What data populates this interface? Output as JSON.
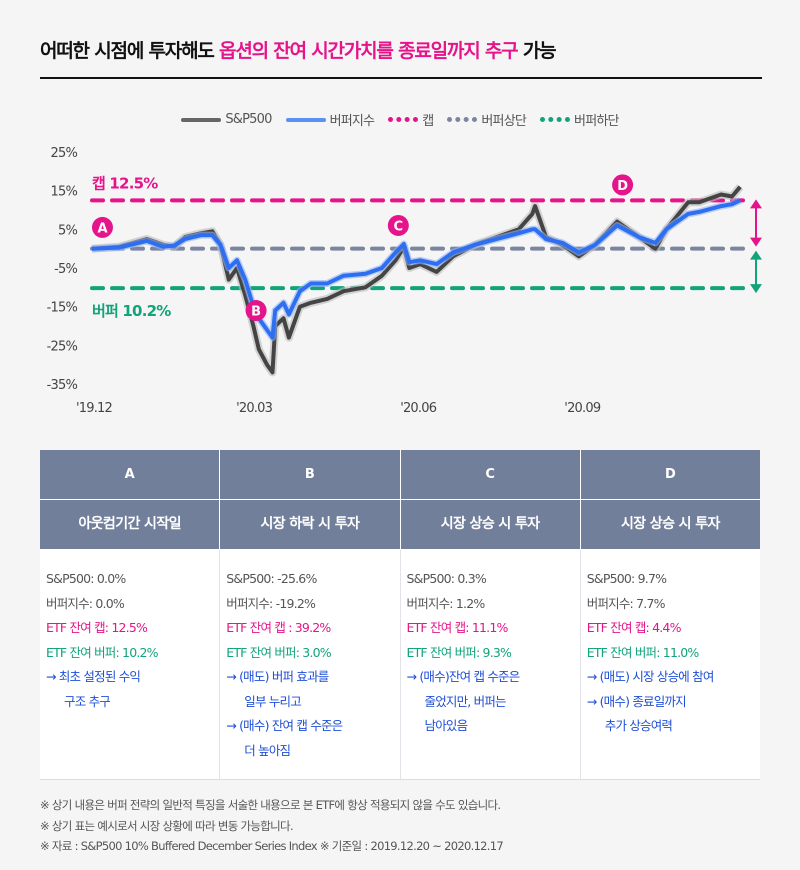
{
  "header": {
    "title_part1": "어떠한 시점에 투자해도 ",
    "title_highlight": "옵션의 잔여 시간가치를 종료일까지 추구",
    "title_part2": " 가능"
  },
  "legend": [
    {
      "label": "S&P500",
      "color": "#555555",
      "style": "solid"
    },
    {
      "label": "버퍼지수",
      "color": "#4a86f0",
      "style": "solid"
    },
    {
      "label": "캡",
      "color": "#e6148b",
      "style": "dashed"
    },
    {
      "label": "버퍼상단",
      "color": "#7a85a0",
      "style": "dashed"
    },
    {
      "label": "버퍼하단",
      "color": "#12a37a",
      "style": "dashed"
    }
  ],
  "chart_data": {
    "type": "line",
    "title": "",
    "xlabel": "",
    "ylabel": "",
    "ylim": [
      -35,
      25
    ],
    "yticks": [
      25,
      15,
      5,
      -5,
      -15,
      -25,
      -35
    ],
    "ytick_labels": [
      "25%",
      "15%",
      "5%",
      "-5%",
      "-15%",
      "-25%",
      "-35%"
    ],
    "xlim": [
      0,
      12
    ],
    "xticks": [
      0,
      3,
      6,
      9
    ],
    "xtick_labels": [
      "'19.12",
      "'20.03",
      "'20.06",
      "'20.09"
    ],
    "x": [
      0,
      0.5,
      1.0,
      1.3,
      1.5,
      1.7,
      2.0,
      2.2,
      2.35,
      2.5,
      2.65,
      2.8,
      2.95,
      3.05,
      3.2,
      3.3,
      3.35,
      3.5,
      3.6,
      3.8,
      4.0,
      4.3,
      4.6,
      5.0,
      5.3,
      5.55,
      5.7,
      5.8,
      6.0,
      6.3,
      6.6,
      7.0,
      7.4,
      7.8,
      8.05,
      8.1,
      8.3,
      8.6,
      8.9,
      9.2,
      9.6,
      10.0,
      10.3,
      10.5,
      10.9,
      11.1,
      11.5,
      11.7,
      11.85
    ],
    "series": [
      {
        "name": "S&P500",
        "color": "#444444",
        "values": [
          0,
          0.5,
          2.5,
          1,
          0.5,
          3,
          4,
          4.5,
          1,
          -8,
          -5,
          -12,
          -20,
          -26,
          -30,
          -32,
          -20,
          -18,
          -23,
          -15,
          -14,
          -13,
          -11,
          -10,
          -7,
          -3,
          0.3,
          -5,
          -4,
          -6,
          -2,
          1,
          3,
          5,
          9,
          11,
          3,
          1,
          -2,
          1,
          7,
          3,
          0,
          5,
          12,
          12,
          14,
          13.5,
          16
        ]
      },
      {
        "name": "버퍼지수",
        "color": "#2e6ff2",
        "values": [
          0,
          0.3,
          2,
          0.5,
          0.8,
          2.5,
          3.5,
          3.5,
          1,
          -5,
          -3,
          -8,
          -15,
          -18,
          -21,
          -23,
          -16,
          -14,
          -17,
          -11,
          -9,
          -9,
          -7,
          -6.5,
          -5,
          -1,
          1.2,
          -3.5,
          -3,
          -4,
          -1,
          1,
          2.5,
          4,
          5,
          5,
          2.5,
          1.5,
          -1,
          1,
          6,
          3,
          1.5,
          5,
          9,
          9.5,
          11,
          11.5,
          12.5
        ]
      }
    ],
    "reference_lines": [
      {
        "name": "캡",
        "value": 12.5,
        "color": "#e6148b"
      },
      {
        "name": "버퍼상단",
        "value": 0,
        "color": "#7a85a0"
      },
      {
        "name": "버퍼하단",
        "value": -10.2,
        "color": "#12a37a"
      }
    ],
    "annotations": {
      "cap_label": "캡 12.5%",
      "buffer_label": "버퍼 10.2%",
      "markers": [
        {
          "label": "A",
          "x": 0.1,
          "y": 5.5
        },
        {
          "label": "B",
          "x": 3.0,
          "y": -16
        },
        {
          "label": "C",
          "x": 5.6,
          "y": 6
        },
        {
          "label": "D",
          "x": 9.7,
          "y": 16.5
        }
      ]
    },
    "grid": false,
    "legend_position": "top"
  },
  "table": {
    "columns": [
      {
        "letter": "A",
        "title": "아웃컴기간 시작일",
        "lines": [
          {
            "text": "S&P500: 0.0%",
            "tone": "g"
          },
          {
            "text": "버퍼지수: 0.0%",
            "tone": "g"
          },
          {
            "text": "ETF 잔여 캡: 12.5%",
            "tone": "p"
          },
          {
            "text": "ETF 잔여 버퍼: 10.2%",
            "tone": "t"
          },
          {
            "text": "→ 최초 설정된 수익",
            "tone": "b"
          },
          {
            "text": "구조 추구",
            "tone": "b",
            "indent": true
          }
        ]
      },
      {
        "letter": "B",
        "title": "시장 하락 시 투자",
        "lines": [
          {
            "text": "S&P500: -25.6%",
            "tone": "g"
          },
          {
            "text": "버퍼지수: -19.2%",
            "tone": "g"
          },
          {
            "text": "ETF 잔여 캡 : 39.2%",
            "tone": "p"
          },
          {
            "text": "ETF 잔여 버퍼: 3.0%",
            "tone": "t"
          },
          {
            "text": "→ (매도) 버퍼 효과를",
            "tone": "b"
          },
          {
            "text": "일부 누리고",
            "tone": "b",
            "indent": true
          },
          {
            "text": "→ (매수) 잔여 캡 수준은",
            "tone": "b"
          },
          {
            "text": "더 높아짐",
            "tone": "b",
            "indent": true
          }
        ]
      },
      {
        "letter": "C",
        "title": "시장 상승 시 투자",
        "lines": [
          {
            "text": "S&P500: 0.3%",
            "tone": "g"
          },
          {
            "text": "버퍼지수: 1.2%",
            "tone": "g"
          },
          {
            "text": "ETF 잔여 캡: 11.1%",
            "tone": "p"
          },
          {
            "text": "ETF 잔여 버퍼: 9.3%",
            "tone": "t"
          },
          {
            "text": "→ (매수)잔여 캡 수준은",
            "tone": "b"
          },
          {
            "text": "줄었지만, 버퍼는",
            "tone": "b",
            "indent": true
          },
          {
            "text": "남아있음",
            "tone": "b",
            "indent": true
          }
        ]
      },
      {
        "letter": "D",
        "title": "시장 상승 시 투자",
        "lines": [
          {
            "text": "S&P500: 9.7%",
            "tone": "g"
          },
          {
            "text": "버퍼지수: 7.7%",
            "tone": "g"
          },
          {
            "text": "ETF 잔여 캡: 4.4%",
            "tone": "p"
          },
          {
            "text": "ETF 잔여 버퍼: 11.0%",
            "tone": "t"
          },
          {
            "text": "→ (매도) 시장 상승에 참여",
            "tone": "b"
          },
          {
            "text": "→ (매수) 종료일까지",
            "tone": "b"
          },
          {
            "text": "추가 상승여력",
            "tone": "b",
            "indent": true
          }
        ]
      }
    ]
  },
  "notes": [
    "※ 상기 내용은 버퍼 전략의 일반적 특징을 서술한 내용으로 본 ETF에 항상 적용되지 않을 수도 있습니다.",
    "※ 상기 표는 예시로서 시장 상황에 따라 변동 가능합니다.",
    "※ 자료 : S&P500 10% Buffered December Series Index ※ 기준일 : 2019.12.20 ~ 2020.12.17"
  ]
}
